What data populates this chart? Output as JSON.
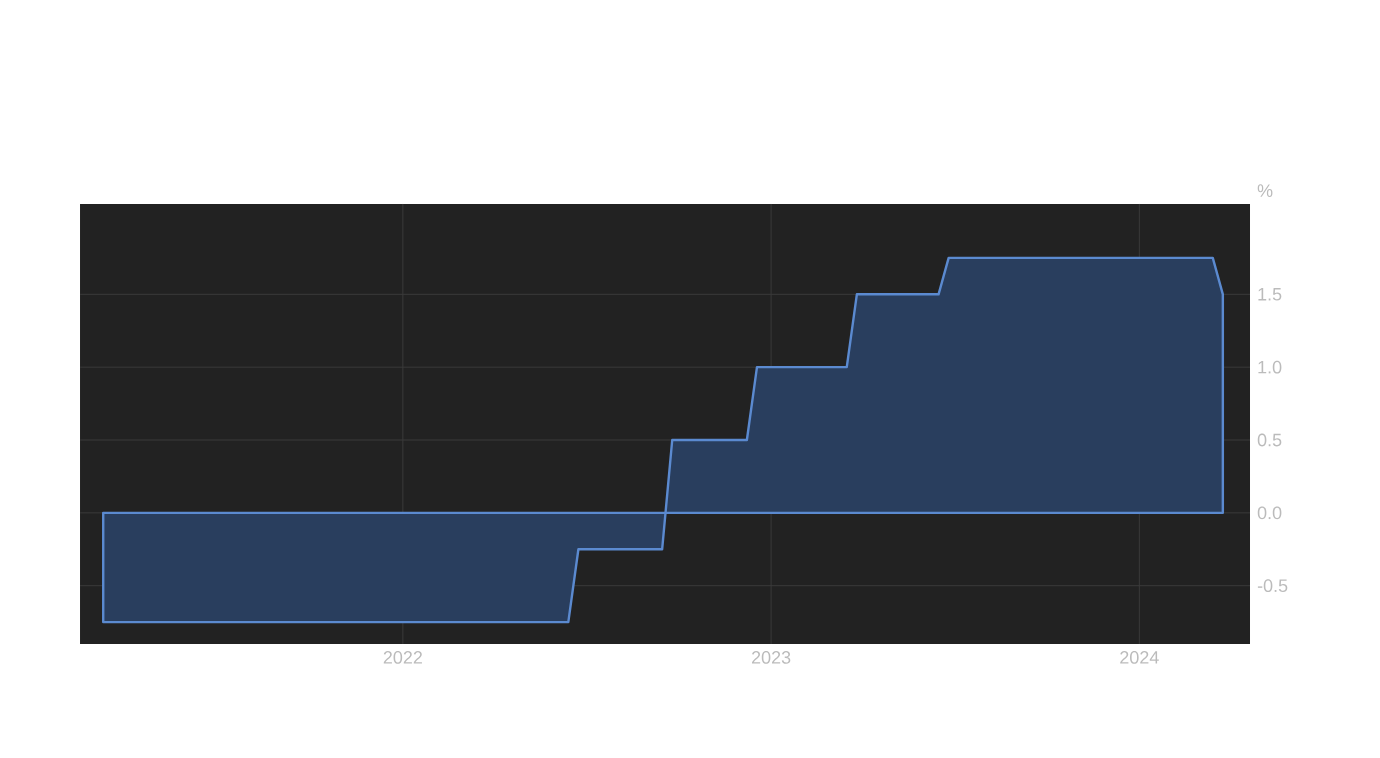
{
  "chart_data": {
    "type": "area",
    "ylabel": "%",
    "x": [
      "2021-03-10",
      "2022-06-14",
      "2022-06-24",
      "2022-09-15",
      "2022-09-25",
      "2022-12-08",
      "2022-12-18",
      "2023-03-17",
      "2023-03-27",
      "2023-06-16",
      "2023-06-26",
      "2024-03-14",
      "2024-03-24"
    ],
    "series": [
      {
        "color": "#5b8ad0",
        "values": [
          -0.75,
          -0.75,
          -0.25,
          -0.25,
          0.5,
          0.5,
          1.0,
          1.0,
          1.5,
          1.5,
          1.75,
          1.75,
          1.5
        ]
      }
    ],
    "xlim": [
      "2021-02-15",
      "2024-04-20"
    ],
    "xticks": [
      "2022",
      "2023",
      "2024"
    ],
    "ylim": [
      -0.9,
      2.12
    ],
    "yticks": [
      {
        "value": -0.5,
        "label": "-0.5"
      },
      {
        "value": 0,
        "label": "0.0"
      },
      {
        "value": 0.5,
        "label": "0.5"
      },
      {
        "value": 1,
        "label": "1.0"
      },
      {
        "value": 1.5,
        "label": "1.5"
      }
    ],
    "grid": true
  }
}
